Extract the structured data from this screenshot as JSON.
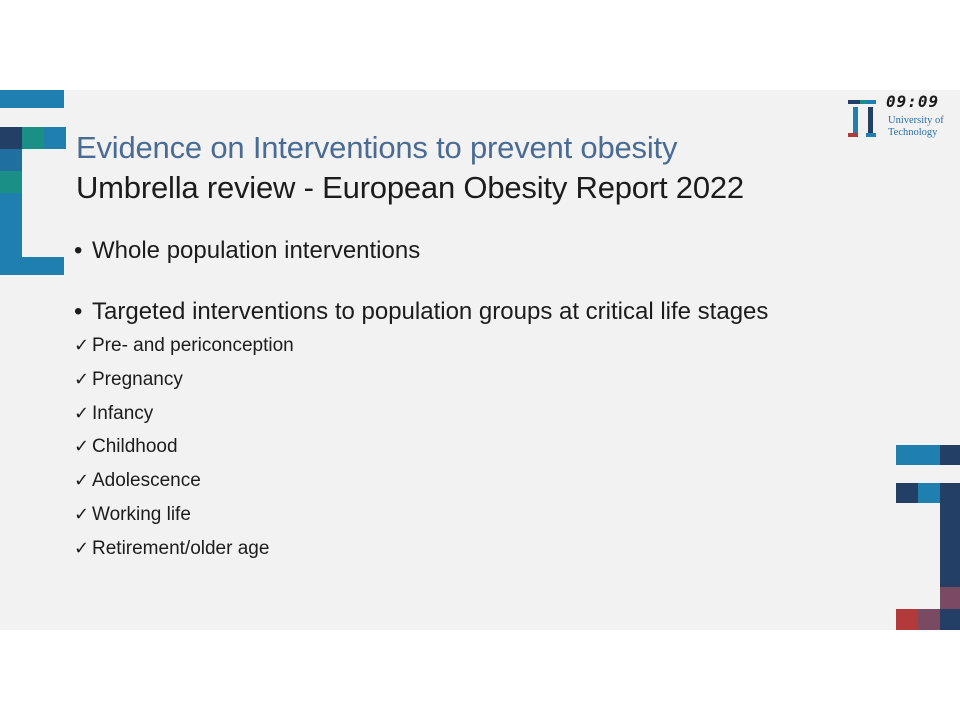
{
  "slide": {
    "title_line1": "Evidence on Interventions to prevent obesity",
    "title_line2": "Umbrella review  - European Obesity Report 2022",
    "bullets": [
      "Whole population interventions",
      "Targeted interventions to population groups at critical life stages"
    ],
    "bullet_symbol": "•",
    "check_symbol": "✓",
    "checklist": [
      "Pre- and periconception",
      "Pregnancy",
      "Infancy",
      "Childhood",
      "Adolescence",
      "Working life",
      "Retirement/older age"
    ]
  },
  "overlay": {
    "clock": "09:09",
    "logo_line1": "University of",
    "logo_line2": "Technology"
  },
  "colors": {
    "title_blue": "#4a6b93",
    "deco_navy": "#243f66",
    "deco_blue": "#1f7fae",
    "deco_teal": "#1a8f86",
    "deco_red": "#b23a3a",
    "deco_mauve": "#7a4a63"
  }
}
